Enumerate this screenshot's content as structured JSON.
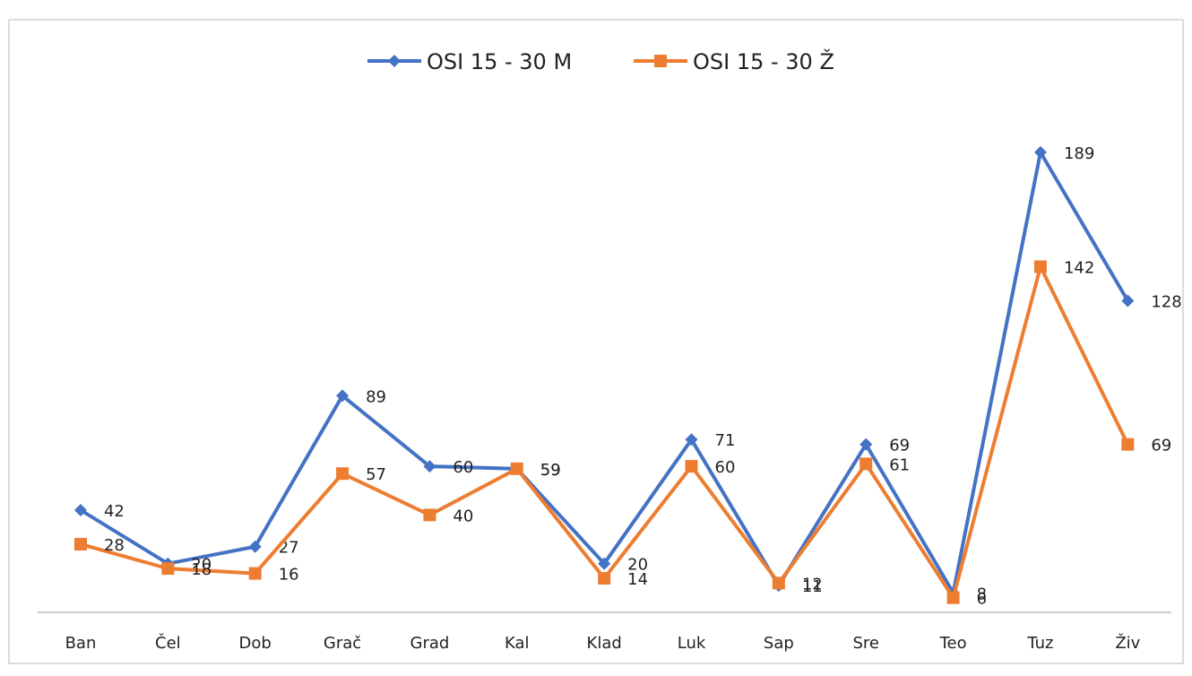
{
  "chart_data": {
    "type": "line",
    "categories": [
      "Ban",
      "Čel",
      "Dob",
      "Grač",
      "Grad",
      "Kal",
      "Klad",
      "Luk",
      "Sap",
      "Sre",
      "Teo",
      "Tuz",
      "Živ"
    ],
    "series": [
      {
        "name": "OSI 15 - 30 M",
        "color": "#4472c4",
        "marker": "diamond",
        "values": [
          42,
          20,
          27,
          89,
          60,
          59,
          20,
          71,
          11,
          69,
          8,
          189,
          128
        ]
      },
      {
        "name": "OSI 15 - 30 Ž",
        "color": "#ed7d31",
        "marker": "square",
        "values": [
          28,
          18,
          16,
          57,
          40,
          59,
          14,
          60,
          12,
          61,
          6,
          142,
          69
        ]
      }
    ],
    "ylim": [
      0,
      200
    ],
    "legend": "top",
    "grid": false
  }
}
